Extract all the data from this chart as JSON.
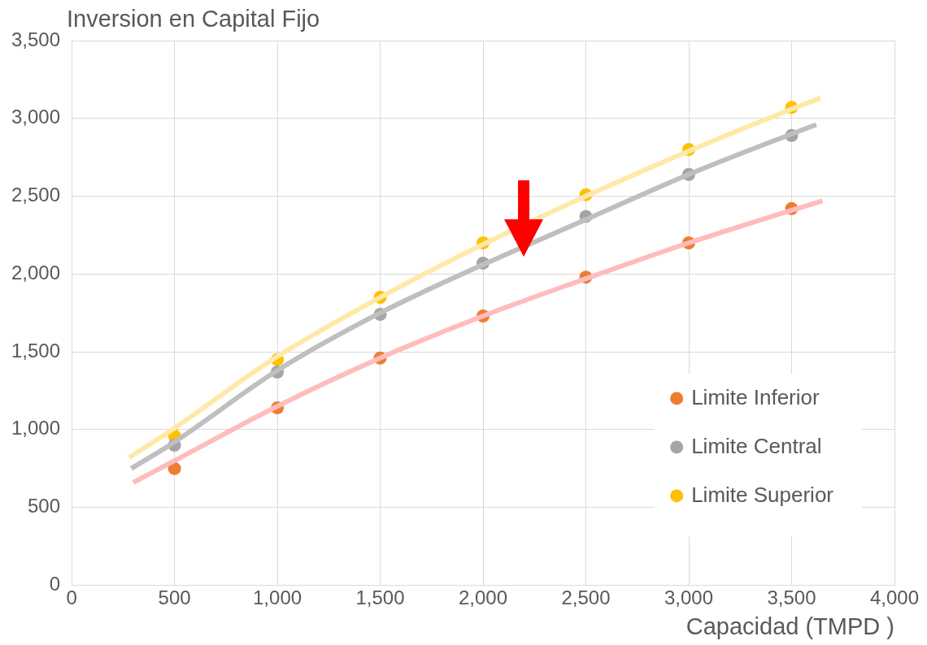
{
  "chart_data": {
    "type": "scatter",
    "title": "Inversion en Capital Fijo",
    "xlabel": "Capacidad (TMPD )",
    "xlim": [
      0,
      4000
    ],
    "xticks": [
      {
        "value": 0,
        "label": "0"
      },
      {
        "value": 500,
        "label": "500"
      },
      {
        "value": 1000,
        "label": "1,000"
      },
      {
        "value": 1500,
        "label": "1,500"
      },
      {
        "value": 2000,
        "label": "2,000"
      },
      {
        "value": 2500,
        "label": "2,500"
      },
      {
        "value": 3000,
        "label": "3,000"
      },
      {
        "value": 3500,
        "label": "3,500"
      },
      {
        "value": 4000,
        "label": "4,000"
      }
    ],
    "ylim": [
      0,
      3500
    ],
    "yticks": [
      {
        "value": 0,
        "label": "0"
      },
      {
        "value": 500,
        "label": "500"
      },
      {
        "value": 1000,
        "label": "1,000"
      },
      {
        "value": 1500,
        "label": "1,500"
      },
      {
        "value": 2000,
        "label": "2,000"
      },
      {
        "value": 2500,
        "label": "2,500"
      },
      {
        "value": 3000,
        "label": "3,000"
      },
      {
        "value": 3500,
        "label": "3,500"
      }
    ],
    "grid": true,
    "legend": "bottom right",
    "marker": "circle",
    "series": [
      {
        "type": "line",
        "marker": "none",
        "color": "#ffbcbc",
        "x": [
          300,
          500,
          1000,
          1500,
          2000,
          2500,
          3000,
          3500,
          3650
        ],
        "values": [
          660,
          800,
          1150,
          1460,
          1730,
          1970,
          2200,
          2410,
          2470
        ]
      },
      {
        "type": "line",
        "marker": "none",
        "color": "#bfbfbf",
        "x": [
          290,
          500,
          1000,
          1500,
          2000,
          2500,
          3000,
          3500,
          3620
        ],
        "values": [
          750,
          920,
          1380,
          1750,
          2060,
          2350,
          2640,
          2900,
          2960
        ]
      },
      {
        "type": "line",
        "marker": "none",
        "color": "#ffe9a8",
        "x": [
          280,
          500,
          1000,
          1500,
          2000,
          2500,
          3000,
          3500,
          3640
        ],
        "values": [
          820,
          1010,
          1470,
          1850,
          2190,
          2500,
          2790,
          3060,
          3130
        ]
      },
      {
        "type": "scatter",
        "name": "Limite Inferior",
        "color": "#ed7d31",
        "x": [
          500,
          1000,
          1500,
          2000,
          2500,
          3000,
          3500
        ],
        "values": [
          750,
          1140,
          1460,
          1730,
          1980,
          2200,
          2420
        ]
      },
      {
        "type": "scatter",
        "name": "Limite Central",
        "color": "#a5a5a5",
        "x": [
          500,
          1000,
          1500,
          2000,
          2500,
          3000,
          3500
        ],
        "values": [
          900,
          1370,
          1740,
          2070,
          2370,
          2640,
          2890
        ]
      },
      {
        "type": "scatter",
        "name": "Limite Superior",
        "color": "#ffc000",
        "x": [
          500,
          1000,
          1500,
          2000,
          2500,
          3000,
          3500
        ],
        "values": [
          960,
          1450,
          1850,
          2200,
          2510,
          2800,
          3070
        ]
      }
    ]
  }
}
